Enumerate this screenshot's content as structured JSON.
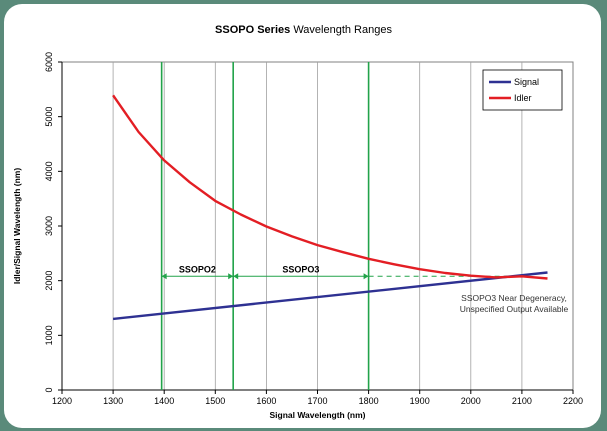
{
  "chart_data": {
    "type": "line",
    "title_bold": "SSOPO Series",
    "title_rest": "Wavelength Ranges",
    "xlabel": "Signal Wavelength (nm)",
    "ylabel": "Idler/Signal Wavelength (nm)",
    "xlim": [
      1200,
      2200
    ],
    "ylim": [
      0,
      6000
    ],
    "xticks": [
      1200,
      1300,
      1400,
      1500,
      1600,
      1700,
      1800,
      1900,
      2000,
      2100,
      2200
    ],
    "yticks": [
      0,
      1000,
      2000,
      3000,
      4000,
      5000,
      6000
    ],
    "grid": "vertical",
    "legend_position": "top-right",
    "series": [
      {
        "name": "Signal",
        "color": "#2e3192",
        "x": [
          1300,
          2150
        ],
        "y": [
          1300,
          2150
        ]
      },
      {
        "name": "Idler",
        "color": "#e31e24",
        "x": [
          1300,
          1350,
          1400,
          1450,
          1500,
          1550,
          1600,
          1650,
          1700,
          1750,
          1800,
          1850,
          1900,
          1950,
          2000,
          2050,
          2100,
          2150
        ],
        "y": [
          5390,
          4720,
          4200,
          3800,
          3460,
          3210,
          2990,
          2810,
          2650,
          2520,
          2400,
          2300,
          2210,
          2140,
          2090,
          2060,
          2080,
          2040
        ]
      }
    ],
    "range_markers": {
      "color": "#22a34a",
      "vlines": [
        1395,
        1535,
        1800
      ],
      "ranges": [
        {
          "label": "SSOPO2",
          "from": 1395,
          "to": 1535,
          "y": 2080
        },
        {
          "label": "SSOPO3",
          "from": 1535,
          "to": 1800,
          "y": 2080
        }
      ],
      "dashed_extension": {
        "from": 1800,
        "to": 2100,
        "y": 2080
      }
    },
    "annotation_lines": [
      "SSOPO3 Near Degeneracy,",
      "Unspecified Output Available"
    ]
  }
}
